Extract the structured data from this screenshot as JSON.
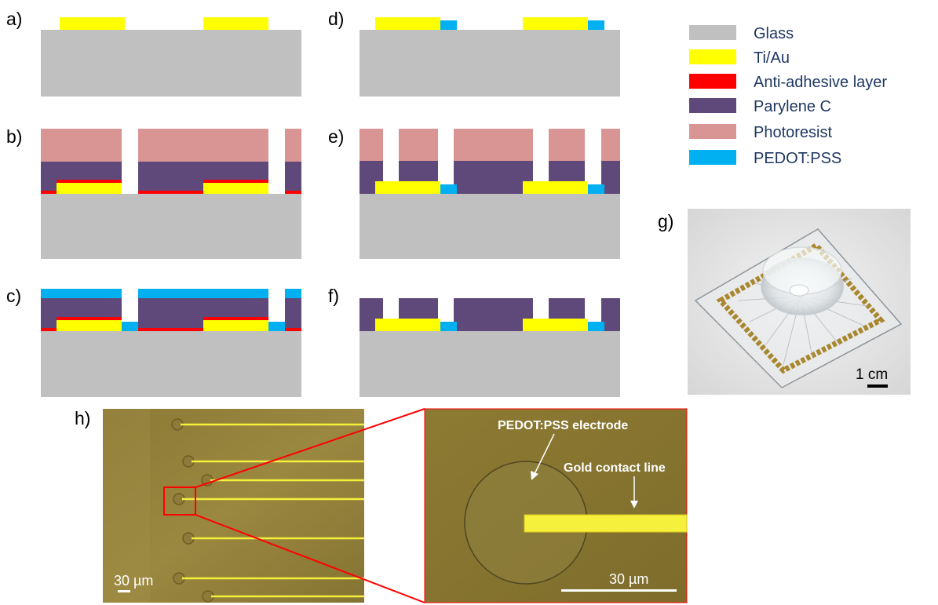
{
  "panels": {
    "a": "a)",
    "b": "b)",
    "c": "c)",
    "d": "d)",
    "e": "e)",
    "f": "f)",
    "g": "g)",
    "h": "h)"
  },
  "colors": {
    "glass": "#c0c0c0",
    "tiau": "#ffff00",
    "anti_adhesive": "#ff0000",
    "parylene": "#5f497a",
    "photoresist": "#d99594",
    "pedot": "#00b0f0"
  },
  "legend": [
    {
      "label": "Glass",
      "color": "#c0c0c0"
    },
    {
      "label": "Ti/Au",
      "color": "#ffff00"
    },
    {
      "label": "Anti-adhesive layer",
      "color": "#ff0000"
    },
    {
      "label": "Parylene C",
      "color": "#5f497a"
    },
    {
      "label": "Photoresist",
      "color": "#d99594"
    },
    {
      "label": "PEDOT:PSS",
      "color": "#00b0f0"
    }
  ],
  "photo_g": {
    "scale_label": "1 cm"
  },
  "micro_left": {
    "scale_label": "30 µm"
  },
  "micro_right": {
    "electrode_label": "PEDOT:PSS electrode",
    "line_label": "Gold contact line",
    "scale_label": "30 µm"
  }
}
